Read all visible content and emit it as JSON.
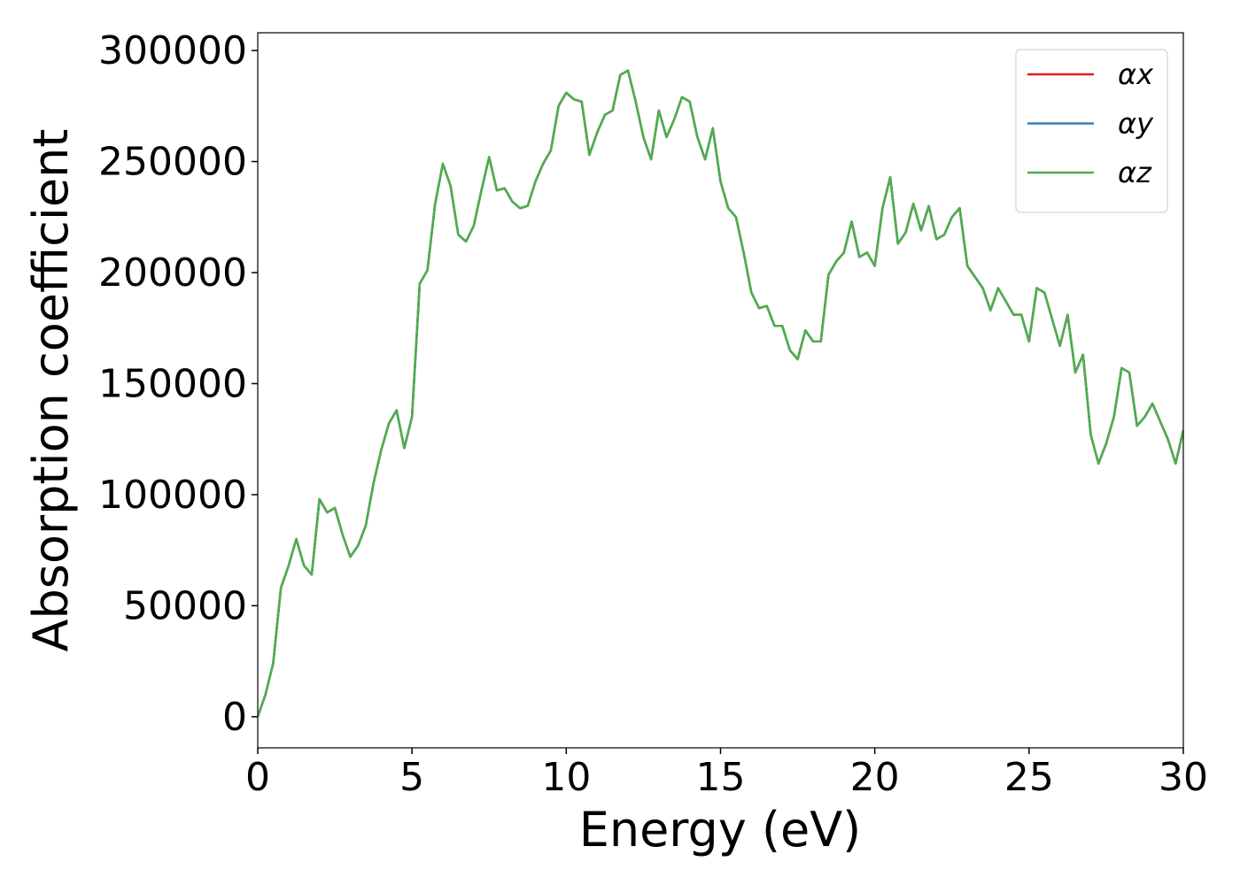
{
  "chart_data": {
    "type": "line",
    "xlabel": "Energy (eV)",
    "ylabel": "Absorption coefficient",
    "xlim": [
      0,
      30
    ],
    "ylim": [
      -14000,
      308000
    ],
    "xticks": [
      0,
      5,
      10,
      15,
      20,
      25,
      30
    ],
    "yticks": [
      0,
      50000,
      100000,
      150000,
      200000,
      250000,
      300000
    ],
    "legend": "upper right",
    "x": [
      0,
      0.25,
      0.5,
      0.75,
      1,
      1.25,
      1.5,
      1.75,
      2,
      2.25,
      2.5,
      2.75,
      3,
      3.25,
      3.5,
      3.75,
      4,
      4.25,
      4.5,
      4.75,
      5,
      5.25,
      5.5,
      5.75,
      6,
      6.25,
      6.5,
      6.75,
      7,
      7.25,
      7.5,
      7.75,
      8,
      8.25,
      8.5,
      8.75,
      9,
      9.25,
      9.5,
      9.75,
      10,
      10.25,
      10.5,
      10.75,
      11,
      11.25,
      11.5,
      11.75,
      12,
      12.25,
      12.5,
      12.75,
      13,
      13.25,
      13.5,
      13.75,
      14,
      14.25,
      14.5,
      14.75,
      15,
      15.25,
      15.5,
      15.75,
      16,
      16.25,
      16.5,
      16.75,
      17,
      17.25,
      17.5,
      17.75,
      18,
      18.25,
      18.5,
      18.75,
      19,
      19.25,
      19.5,
      19.75,
      20,
      20.25,
      20.5,
      20.75,
      21,
      21.25,
      21.5,
      21.75,
      22,
      22.25,
      22.5,
      22.75,
      23,
      23.25,
      23.5,
      23.75,
      24,
      24.25,
      24.5,
      24.75,
      25,
      25.25,
      25.5,
      25.75,
      26,
      26.25,
      26.5,
      26.75,
      27,
      27.25,
      27.5,
      27.75,
      28,
      28.25,
      28.5,
      28.75,
      29,
      29.25,
      29.5,
      29.75,
      30
    ],
    "series": [
      {
        "name": "αx",
        "color": "#e41a1c",
        "values": [
          0,
          10000,
          24000,
          58000,
          68000,
          80000,
          68000,
          64000,
          98000,
          92000,
          94000,
          82000,
          72000,
          77000,
          86000,
          105000,
          120000,
          132000,
          138000,
          121000,
          135000,
          195000,
          201000,
          231000,
          249000,
          239000,
          217000,
          214000,
          221000,
          237000,
          252000,
          237000,
          238000,
          232000,
          229000,
          230000,
          241000,
          249000,
          255000,
          275000,
          281000,
          278000,
          277000,
          253000,
          263000,
          271000,
          273000,
          289000,
          291000,
          277000,
          261000,
          251000,
          273000,
          261000,
          269000,
          279000,
          277000,
          261000,
          251000,
          265000,
          241000,
          229000,
          225000,
          209000,
          191000,
          184000,
          185000,
          176000,
          176000,
          165000,
          161000,
          174000,
          169000,
          169000,
          199000,
          205000,
          209000,
          223000,
          207000,
          209000,
          203000,
          229000,
          243000,
          213000,
          218000,
          231000,
          219000,
          230000,
          215000,
          217000,
          225000,
          229000,
          203000,
          198000,
          193000,
          183000,
          193000,
          187000,
          181000,
          181000,
          169000,
          193000,
          191000,
          179000,
          167000,
          181000,
          155000,
          163000,
          127000,
          114000,
          123000,
          135000,
          157000,
          155000,
          131000,
          135000,
          141000,
          133000,
          125000,
          114000,
          129000
        ]
      },
      {
        "name": "αy",
        "color": "#377eb8",
        "values": [
          0,
          10000,
          24000,
          58000,
          68000,
          80000,
          68000,
          64000,
          98000,
          92000,
          94000,
          82000,
          72000,
          77000,
          86000,
          105000,
          120000,
          132000,
          138000,
          121000,
          135000,
          195000,
          201000,
          231000,
          249000,
          239000,
          217000,
          214000,
          221000,
          237000,
          252000,
          237000,
          238000,
          232000,
          229000,
          230000,
          241000,
          249000,
          255000,
          275000,
          281000,
          278000,
          277000,
          253000,
          263000,
          271000,
          273000,
          289000,
          291000,
          277000,
          261000,
          251000,
          273000,
          261000,
          269000,
          279000,
          277000,
          261000,
          251000,
          265000,
          241000,
          229000,
          225000,
          209000,
          191000,
          184000,
          185000,
          176000,
          176000,
          165000,
          161000,
          174000,
          169000,
          169000,
          199000,
          205000,
          209000,
          223000,
          207000,
          209000,
          203000,
          229000,
          243000,
          213000,
          218000,
          231000,
          219000,
          230000,
          215000,
          217000,
          225000,
          229000,
          203000,
          198000,
          193000,
          183000,
          193000,
          187000,
          181000,
          181000,
          169000,
          193000,
          191000,
          179000,
          167000,
          181000,
          155000,
          163000,
          127000,
          114000,
          123000,
          135000,
          157000,
          155000,
          131000,
          135000,
          141000,
          133000,
          125000,
          114000,
          129000
        ]
      },
      {
        "name": "αz",
        "color": "#4daf4a",
        "values": [
          0,
          10000,
          24000,
          58000,
          68000,
          80000,
          68000,
          64000,
          98000,
          92000,
          94000,
          82000,
          72000,
          77000,
          86000,
          105000,
          120000,
          132000,
          138000,
          121000,
          135000,
          195000,
          201000,
          231000,
          249000,
          239000,
          217000,
          214000,
          221000,
          237000,
          252000,
          237000,
          238000,
          232000,
          229000,
          230000,
          241000,
          249000,
          255000,
          275000,
          281000,
          278000,
          277000,
          253000,
          263000,
          271000,
          273000,
          289000,
          291000,
          277000,
          261000,
          251000,
          273000,
          261000,
          269000,
          279000,
          277000,
          261000,
          251000,
          265000,
          241000,
          229000,
          225000,
          209000,
          191000,
          184000,
          185000,
          176000,
          176000,
          165000,
          161000,
          174000,
          169000,
          169000,
          199000,
          205000,
          209000,
          223000,
          207000,
          209000,
          203000,
          229000,
          243000,
          213000,
          218000,
          231000,
          219000,
          230000,
          215000,
          217000,
          225000,
          229000,
          203000,
          198000,
          193000,
          183000,
          193000,
          187000,
          181000,
          181000,
          169000,
          193000,
          191000,
          179000,
          167000,
          181000,
          155000,
          163000,
          127000,
          114000,
          123000,
          135000,
          157000,
          155000,
          131000,
          135000,
          141000,
          133000,
          125000,
          114000,
          129000
        ]
      }
    ]
  }
}
